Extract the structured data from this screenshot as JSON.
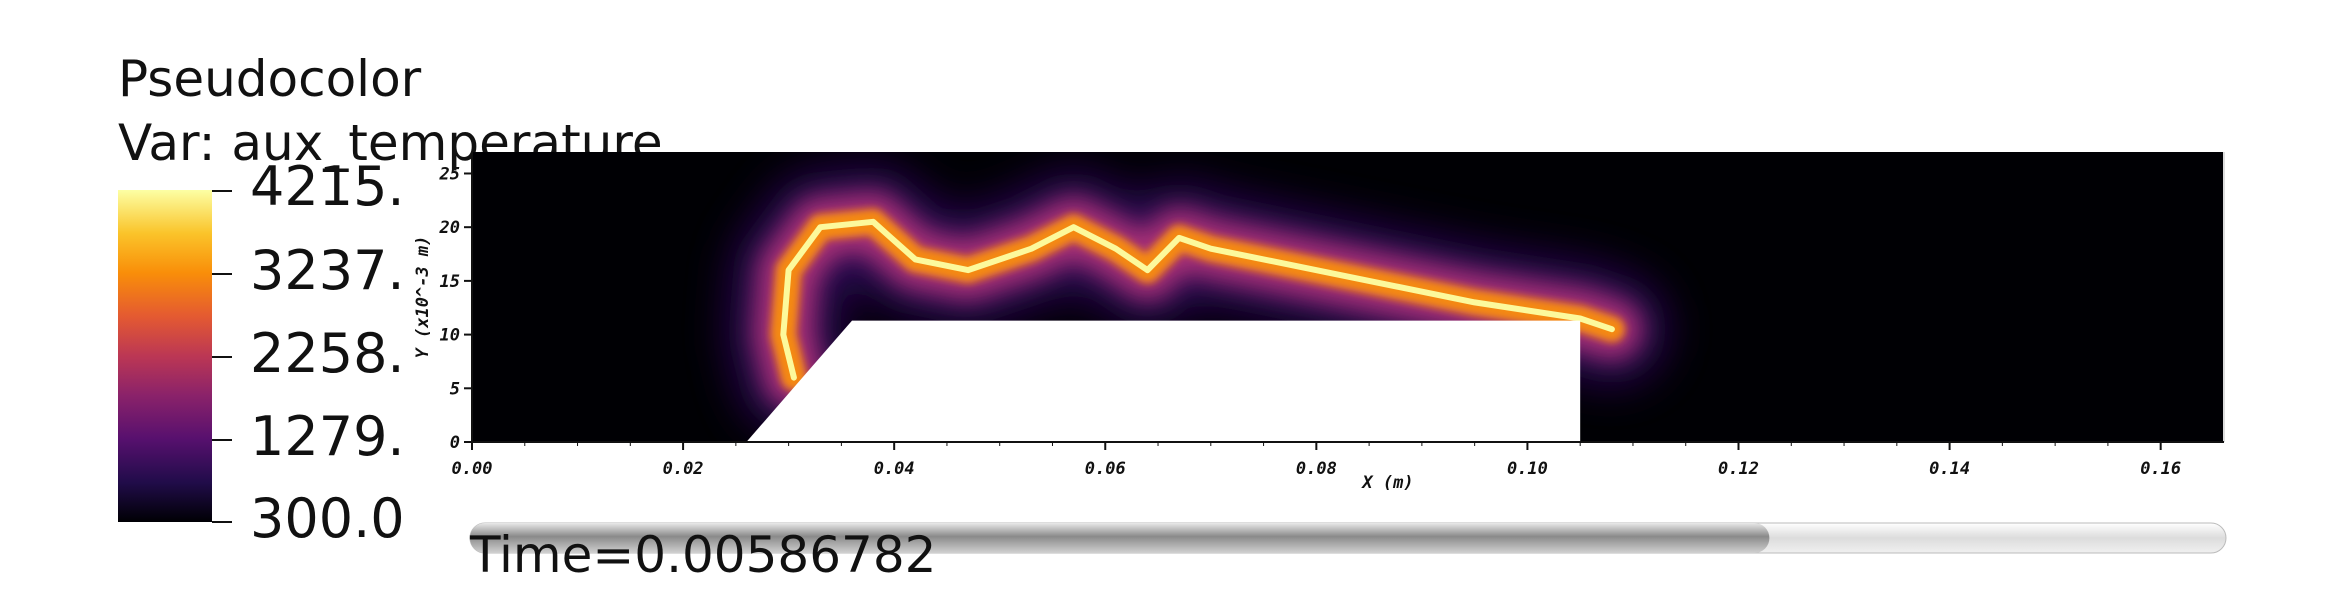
{
  "legend": {
    "title": "Pseudocolor",
    "var_label": "Var: aux_temperature",
    "colorbar_ticks": [
      "4215.",
      "3237.",
      "2258.",
      "1279.",
      "300.0"
    ],
    "colormap": "inferno"
  },
  "time_label": "Time=0.00586782",
  "time_progress": 0.74,
  "chart_data": {
    "type": "heatmap",
    "variable": "aux_temperature",
    "value_range": [
      300.0,
      4215.0
    ],
    "xlabel": "X (m)",
    "ylabel": "Y (x10^-3 m)",
    "xlim": [
      0.0,
      0.166
    ],
    "ylim": [
      0,
      27
    ],
    "x_ticks": [
      "0.00",
      "0.02",
      "0.04",
      "0.06",
      "0.08",
      "0.10",
      "0.12",
      "0.14",
      "0.16"
    ],
    "y_ticks": [
      "0",
      "5",
      "10",
      "15",
      "20",
      "25"
    ],
    "grid": false,
    "obstacle": {
      "x_range": [
        0.036,
        0.105
      ],
      "y_range": [
        0,
        11.3
      ],
      "ramp_start_x": 0.026
    },
    "flame_front_path": [
      {
        "x": 0.0305,
        "y": 6.0
      },
      {
        "x": 0.0295,
        "y": 10.0
      },
      {
        "x": 0.03,
        "y": 16.0
      },
      {
        "x": 0.033,
        "y": 20.0
      },
      {
        "x": 0.038,
        "y": 20.5
      },
      {
        "x": 0.042,
        "y": 17.0
      },
      {
        "x": 0.047,
        "y": 16.0
      },
      {
        "x": 0.053,
        "y": 18.0
      },
      {
        "x": 0.057,
        "y": 20.0
      },
      {
        "x": 0.061,
        "y": 18.0
      },
      {
        "x": 0.064,
        "y": 16.0
      },
      {
        "x": 0.067,
        "y": 19.0
      },
      {
        "x": 0.07,
        "y": 18.0
      },
      {
        "x": 0.075,
        "y": 17.0
      },
      {
        "x": 0.085,
        "y": 15.0
      },
      {
        "x": 0.095,
        "y": 13.0
      },
      {
        "x": 0.105,
        "y": 11.5
      },
      {
        "x": 0.108,
        "y": 10.5
      }
    ]
  }
}
